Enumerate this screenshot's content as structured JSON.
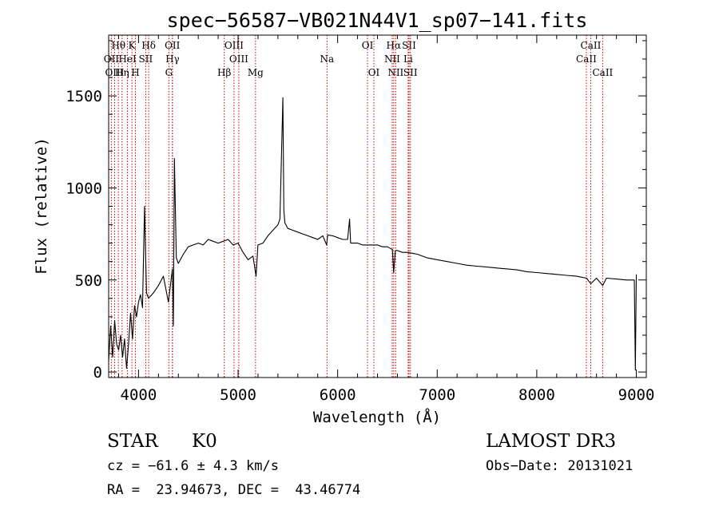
{
  "chart_data": {
    "type": "line",
    "title": "spec−56587−VB021N44V1_sp07−141.fits",
    "xlabel": "Wavelength (Å)",
    "ylabel": "Flux (relative)",
    "xlim": [
      3700,
      9100
    ],
    "ylim": [
      -30,
      1830
    ],
    "xticks": [
      4000,
      5000,
      6000,
      7000,
      8000,
      9000
    ],
    "yticks": [
      0,
      500,
      1000,
      1500
    ],
    "grid": false,
    "spectrum": {
      "x": [
        3700,
        3720,
        3740,
        3760,
        3780,
        3800,
        3820,
        3840,
        3860,
        3880,
        3900,
        3920,
        3940,
        3960,
        3980,
        4000,
        4020,
        4040,
        4060,
        4080,
        4100,
        4150,
        4200,
        4250,
        4300,
        4340,
        4350,
        4360,
        4380,
        4400,
        4450,
        4500,
        4550,
        4600,
        4650,
        4700,
        4750,
        4800,
        4850,
        4900,
        4950,
        5000,
        5050,
        5100,
        5150,
        5180,
        5200,
        5250,
        5300,
        5350,
        5400,
        5420,
        5450,
        5460,
        5470,
        5500,
        5550,
        5600,
        5650,
        5700,
        5750,
        5800,
        5850,
        5890,
        5900,
        5950,
        6000,
        6050,
        6100,
        6120,
        6130,
        6150,
        6200,
        6250,
        6300,
        6350,
        6400,
        6450,
        6500,
        6550,
        6563,
        6580,
        6600,
        6650,
        6700,
        6750,
        6800,
        6900,
        7000,
        7100,
        7200,
        7300,
        7400,
        7500,
        7600,
        7700,
        7800,
        7900,
        8000,
        8100,
        8200,
        8300,
        8400,
        8500,
        8542,
        8600,
        8662,
        8700,
        8800,
        8900,
        8980,
        8990,
        9000
      ],
      "y": [
        60,
        250,
        80,
        280,
        150,
        120,
        200,
        80,
        180,
        20,
        150,
        320,
        180,
        360,
        300,
        380,
        420,
        350,
        900,
        430,
        400,
        430,
        470,
        520,
        380,
        560,
        250,
        1160,
        620,
        590,
        640,
        680,
        690,
        700,
        690,
        720,
        710,
        700,
        710,
        720,
        690,
        700,
        650,
        610,
        630,
        520,
        690,
        700,
        740,
        770,
        800,
        830,
        1490,
        880,
        810,
        780,
        770,
        760,
        750,
        740,
        730,
        720,
        740,
        690,
        745,
        740,
        730,
        720,
        720,
        830,
        700,
        700,
        700,
        690,
        690,
        690,
        690,
        680,
        680,
        665,
        540,
        660,
        660,
        650,
        650,
        645,
        640,
        620,
        610,
        600,
        590,
        580,
        575,
        570,
        565,
        560,
        555,
        545,
        540,
        535,
        530,
        525,
        520,
        510,
        480,
        510,
        470,
        510,
        505,
        500,
        500,
        10,
        530
      ]
    },
    "lines": [
      {
        "name": "Hθ",
        "x": 3798,
        "row": 0
      },
      {
        "name": "K",
        "x": 3934,
        "row": 0
      },
      {
        "name": "Hδ",
        "x": 4102,
        "row": 0
      },
      {
        "name": "OII",
        "x": 4340,
        "row": 0
      },
      {
        "name": "OIII",
        "x": 4959,
        "row": 0
      },
      {
        "name": "OI",
        "x": 6300,
        "row": 0
      },
      {
        "name": "Hα",
        "x": 6563,
        "row": 0
      },
      {
        "name": "SII",
        "x": 6717,
        "row": 0
      },
      {
        "name": "CaII",
        "x": 8542,
        "row": 0
      },
      {
        "name": "OII",
        "x": 3727,
        "row": 1
      },
      {
        "name": "HeI",
        "x": 3889,
        "row": 1
      },
      {
        "name": "SII",
        "x": 4072,
        "row": 1
      },
      {
        "name": "Hγ",
        "x": 4341,
        "row": 1
      },
      {
        "name": "OIII",
        "x": 5007,
        "row": 1
      },
      {
        "name": "Na",
        "x": 5893,
        "row": 1
      },
      {
        "name": "NII",
        "x": 6548,
        "row": 1
      },
      {
        "name": "Li",
        "x": 6708,
        "row": 1
      },
      {
        "name": "CaII",
        "x": 8498,
        "row": 1
      },
      {
        "name": "OIII",
        "x": 3760,
        "row": 2
      },
      {
        "name": "Hη",
        "x": 3835,
        "row": 2
      },
      {
        "name": "H",
        "x": 3969,
        "row": 2
      },
      {
        "name": "G",
        "x": 4305,
        "row": 2
      },
      {
        "name": "Hβ",
        "x": 4861,
        "row": 2
      },
      {
        "name": "Mg",
        "x": 5175,
        "row": 2
      },
      {
        "name": "OI",
        "x": 6364,
        "row": 2
      },
      {
        "name": "NII",
        "x": 6583,
        "row": 2
      },
      {
        "name": "SII",
        "x": 6731,
        "row": 2
      },
      {
        "name": "CaII",
        "x": 8662,
        "row": 2
      }
    ]
  },
  "info": {
    "object_type": "STAR",
    "subclass": "K0",
    "survey": "LAMOST DR3",
    "cz": "cz = −61.6 ± 4.3 km/s",
    "obs_date": "Obs−Date: 20131021",
    "coords": "RA =  23.94673, DEC =  43.46774"
  }
}
